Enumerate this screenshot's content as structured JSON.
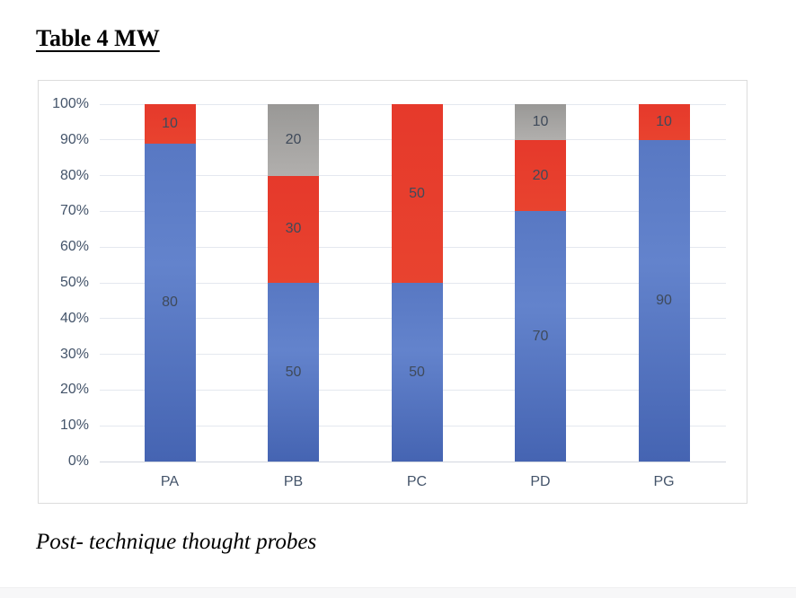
{
  "page": {
    "title": "Table 4 MW",
    "caption": "Post- technique thought probes"
  },
  "chart_data": {
    "type": "bar",
    "subtype": "stacked-100-percent",
    "title": "Table 4 MW",
    "xlabel": "",
    "ylabel": "",
    "categories": [
      "PA",
      "PB",
      "PC",
      "PD",
      "PG"
    ],
    "series": [
      {
        "name": "blue",
        "fill": {
          "stops": [
            "#5878C3",
            "#6383CC",
            "#4564B2"
          ]
        },
        "values": [
          80,
          50,
          50,
          70,
          90
        ]
      },
      {
        "name": "red",
        "fill": {
          "stops": [
            "#E6392B",
            "#E8432F"
          ]
        },
        "values": [
          10,
          30,
          50,
          20,
          10
        ]
      },
      {
        "name": "gray",
        "fill": {
          "stops": [
            "#999896",
            "#B1AFAD"
          ]
        },
        "values": [
          0,
          20,
          0,
          10,
          0
        ]
      }
    ],
    "data_labels_shown": true,
    "yticks": [
      "0%",
      "10%",
      "20%",
      "30%",
      "40%",
      "50%",
      "60%",
      "70%",
      "80%",
      "90%",
      "100%"
    ],
    "ylim": [
      0,
      100
    ],
    "grid": true,
    "legend": "none",
    "colors": {
      "axis_text": "#44546A",
      "bar_label_text": "#3F4A5A",
      "gridline": "#E4E8EF",
      "axis_line": "#D2D7DF",
      "frame_border": "#DCDCDC"
    }
  }
}
